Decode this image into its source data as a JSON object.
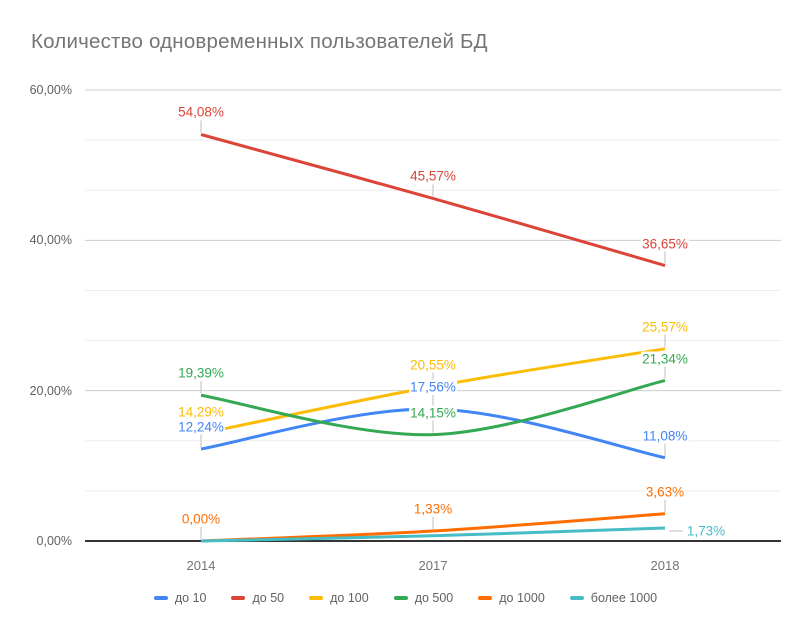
{
  "title": "Количество одновременных пользователей БД",
  "chart_data": {
    "type": "line",
    "title": "Количество одновременных пользователей БД",
    "line_style": "smooth",
    "x_categories": [
      "2014",
      "2017",
      "2018"
    ],
    "y_axis": {
      "min": 0,
      "max": 60,
      "tick_values": [
        60,
        40,
        20,
        0
      ],
      "tick_labels": [
        "60,00%",
        "40,00%",
        "20,00%",
        "0,00%"
      ]
    },
    "grid": {
      "horizontal_major": true,
      "horizontal_minor": true,
      "vertical": false
    },
    "legend_position": "bottom",
    "series": [
      {
        "name": "до 10",
        "color": "#4285F4",
        "values": [
          12.24,
          17.56,
          11.08
        ],
        "point_labels": [
          "12,24%",
          "17,56%",
          "11,08%"
        ]
      },
      {
        "name": "до 50",
        "color": "#DB4437",
        "values": [
          54.08,
          45.57,
          36.65
        ],
        "point_labels": [
          "54,08%",
          "45,57%",
          "36,65%"
        ]
      },
      {
        "name": "до 100",
        "color": "#FBBC04",
        "values": [
          14.29,
          20.55,
          25.57
        ],
        "point_labels": [
          "14,29%",
          "20,55%",
          "25,57%"
        ]
      },
      {
        "name": "до 500",
        "color": "#34A853",
        "values": [
          19.39,
          14.15,
          21.34
        ],
        "point_labels": [
          "19,39%",
          "14,15%",
          "21,34%"
        ]
      },
      {
        "name": "до 1000",
        "color": "#FF6D01",
        "values": [
          0.0,
          1.33,
          3.63
        ],
        "point_labels": [
          "0,00%",
          "1,33%",
          "3,63%"
        ]
      },
      {
        "name": "более 1000",
        "color": "#46BDC6",
        "values": [
          0.0,
          0.7,
          1.73
        ],
        "point_labels": [
          null,
          null,
          "1,73%"
        ]
      }
    ]
  }
}
